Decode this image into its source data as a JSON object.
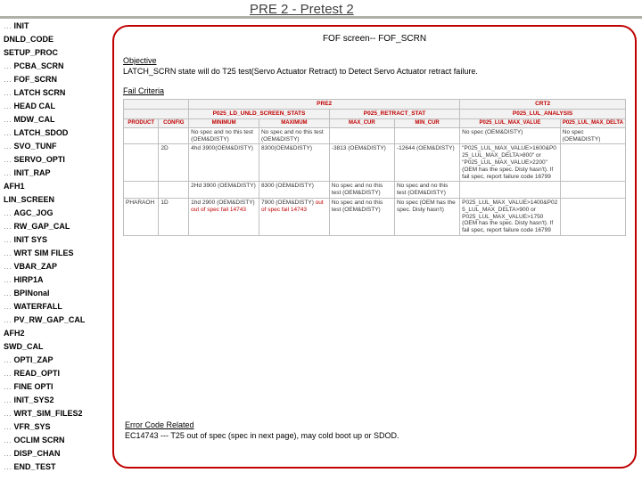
{
  "title": "PRE 2 - Pretest 2",
  "subtitle": "FOF screen-- FOF_SCRN",
  "sidebar": [
    {
      "label": "INIT",
      "bold": true,
      "dots": true
    },
    {
      "label": "DNLD_CODE",
      "bold": true,
      "dots": false
    },
    {
      "label": "SETUP_PROC",
      "bold": true,
      "dots": false
    },
    {
      "label": "PCBA_SCRN",
      "bold": true,
      "dots": true
    },
    {
      "label": "FOF_SCRN",
      "bold": true,
      "dots": true
    },
    {
      "label": "LATCH SCRN",
      "bold": true,
      "dots": true
    },
    {
      "label": "HEAD CAL",
      "bold": true,
      "dots": true
    },
    {
      "label": "MDW_CAL",
      "bold": true,
      "dots": true
    },
    {
      "label": "LATCH_SDOD",
      "bold": true,
      "dots": true
    },
    {
      "label": "SVO_TUNF",
      "bold": true,
      "dots": true
    },
    {
      "label": "SERVO_OPTI",
      "bold": true,
      "dots": true
    },
    {
      "label": "INIT_RAP",
      "bold": true,
      "dots": true
    },
    {
      "label": "AFH1",
      "bold": true,
      "dots": false
    },
    {
      "label": "LIN_SCREEN",
      "bold": true,
      "dots": false
    },
    {
      "label": "AGC_JOG",
      "bold": true,
      "dots": true
    },
    {
      "label": "RW_GAP_CAL",
      "bold": true,
      "dots": true
    },
    {
      "label": "INIT SYS",
      "bold": true,
      "dots": true
    },
    {
      "label": "WRT SIM FILES",
      "bold": true,
      "dots": true
    },
    {
      "label": "VBAR_ZAP",
      "bold": true,
      "dots": true
    },
    {
      "label": "HIRP1A",
      "bold": true,
      "dots": true
    },
    {
      "label": "BPINonal",
      "bold": true,
      "dots": true
    },
    {
      "label": "WATERFALL",
      "bold": true,
      "dots": true
    },
    {
      "label": "PV_RW_GAP_CAL",
      "bold": true,
      "dots": true
    },
    {
      "label": "AFH2",
      "bold": true,
      "dots": false
    },
    {
      "label": "SWD_CAL",
      "bold": true,
      "dots": false
    },
    {
      "label": "OPTI_ZAP",
      "bold": true,
      "dots": true
    },
    {
      "label": "READ_OPTI",
      "bold": true,
      "dots": true
    },
    {
      "label": "FINE OPTI",
      "bold": true,
      "dots": true
    },
    {
      "label": "INIT_SYS2",
      "bold": true,
      "dots": true
    },
    {
      "label": "WRT_SIM_FILES2",
      "bold": true,
      "dots": true
    },
    {
      "label": "VFR_SYS",
      "bold": true,
      "dots": true
    },
    {
      "label": "OCLIM SCRN",
      "bold": true,
      "dots": true
    },
    {
      "label": "DISP_CHAN",
      "bold": true,
      "dots": true
    },
    {
      "label": "END_TEST",
      "bold": true,
      "dots": true
    }
  ],
  "objective_head": "Objective",
  "objective_text": "LATCH_SCRN state will do T25 test(Servo Actuator Retract) to Detect Servo Actuator retract failure.",
  "fail_head": "Fail Criteria",
  "table": {
    "group_headers": [
      "",
      "PRE2",
      "",
      "CRT2"
    ],
    "sub_headers_top": [
      "",
      "P025_LD_UNLD_SCREEN_STATS",
      "P025_RETRACT_STAT",
      "P025_LUL_ANALYSIS"
    ],
    "columns": [
      "PRODUCT",
      "CONFIG",
      "MINIMUM",
      "MAXIMUM",
      "MAX_CUR",
      "MIN_CUR",
      "P025_LUL_MAX_VALUE",
      "P025_LUL_MAX_DELTA"
    ],
    "rows": [
      [
        "",
        "",
        "No spec and no this test (OEM&DISTY)",
        "No spec and no this test (OEM&DISTY)",
        "",
        "",
        "No spec (OEM&DISTY)",
        "No spec (OEM&DISTY)"
      ],
      [
        "",
        "2D",
        "4hd 3900(OEM&DISTY)",
        "8300(OEM&DISTY)",
        "-3813 (OEM&DISTY)",
        "-12644 (OEM&DISTY)",
        "\"P025_LUL_MAX_VALUE>1600&P025_LUL_MAX_DELTA>800\" or \"P025_LUL_MAX_VALUE>2200\" (OEM has the spec. Disty hasn't). If fail spec, report failure code 16799",
        ""
      ],
      [
        "",
        "",
        "2Hd 3900 (OEM&DISTY)",
        "8300 (OEM&DISTY)",
        "No spec and no this test (OEM&DISTY)",
        "No spec and no this test (OEM&DISTY)",
        "",
        ""
      ],
      [
        "PHARAOH",
        "1D",
        "1hd 2900 (OEM&DISTY) out of spec fail 14743",
        "7900 (OEM&DISTY) out of spec fail 14743",
        "No spec and no this test (OEM&DISTY)",
        "No spec (OEM has the spec. Disty hasn't)",
        "P025_LUL_MAX_VALUE>1400&P025_LUL_MAX_DELTA>900 or P025_LUL_MAX_VALUE>1750 (OEM has the spec. Disty hasn't). If fail spec, report failure code 16799",
        ""
      ]
    ]
  },
  "error_head": "Error Code Related",
  "error_text": "EC14743 --- T25 out of spec (spec in next page), may cold boot up or SDOD."
}
